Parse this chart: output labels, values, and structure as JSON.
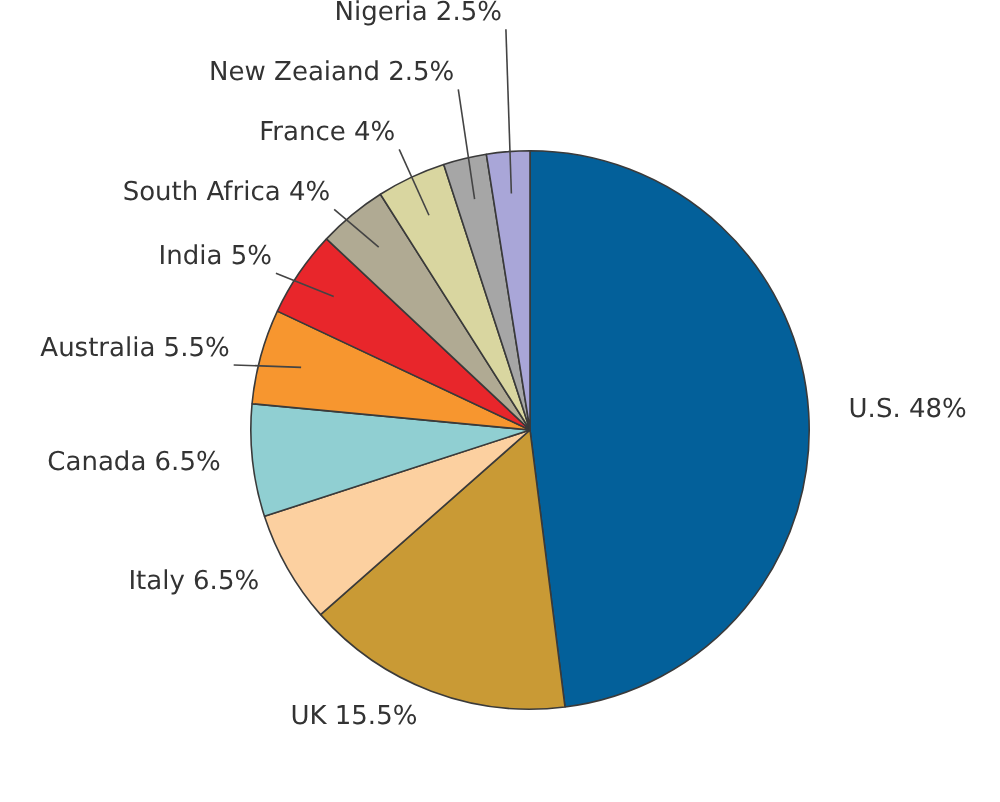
{
  "chart_data": {
    "type": "pie",
    "categories": [
      "U.S.",
      "UK",
      "Italy",
      "Canada",
      "Australia",
      "India",
      "South Africa",
      "France",
      "New Zeaiand",
      "Nigeria"
    ],
    "values": [
      48,
      15.5,
      6.5,
      6.5,
      5.5,
      5,
      4,
      4,
      2.5,
      2.5
    ],
    "value_labels": [
      "48%",
      "15.5%",
      "6.5%",
      "6.5%",
      "5.5%",
      "5%",
      "4%",
      "4%",
      "2.5%",
      "2.5%"
    ],
    "colors": [
      "#03609a",
      "#c99a35",
      "#fcd0a0",
      "#90cfd2",
      "#f7962f",
      "#e8262b",
      "#b0aa93",
      "#d9d6a0",
      "#a6a6a6",
      "#a9a6d8"
    ],
    "legend": false
  }
}
